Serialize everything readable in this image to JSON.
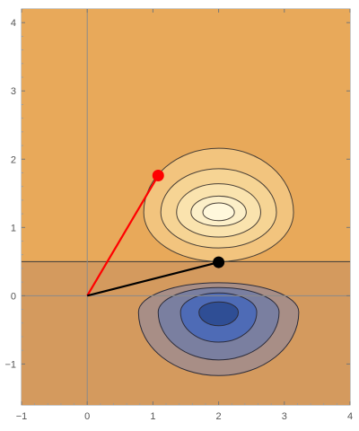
{
  "chart_data": {
    "type": "contour",
    "xlim": [
      -1,
      4
    ],
    "ylim": [
      -1.6,
      4.2
    ],
    "x_ticks": [
      "−1",
      "0",
      "1",
      "2",
      "3",
      "4"
    ],
    "y_ticks": [
      "−1",
      "0",
      "1",
      "2",
      "3",
      "4"
    ],
    "x_tick_values": [
      -1,
      0,
      1,
      2,
      3,
      4
    ],
    "y_tick_values": [
      -1,
      0,
      1,
      2,
      3,
      4
    ],
    "background": {
      "upper": "#E8A95A",
      "lower": "#D49A5E"
    },
    "boundary_y": 0.5,
    "axes_origin": [
      0,
      0
    ],
    "contours_upper": {
      "center": [
        2,
        1.22
      ],
      "levels": [
        {
          "rx": 1.14,
          "ry_top": 0.94,
          "ry_bottom": 0.72,
          "color": "#F2C47E"
        },
        {
          "rx": 0.88,
          "ry_top": 0.64,
          "ry_bottom": 0.52,
          "color": "#F6D494"
        },
        {
          "rx": 0.64,
          "ry_top": 0.42,
          "ry_bottom": 0.36,
          "color": "#FAE3AE"
        },
        {
          "rx": 0.42,
          "ry_top": 0.24,
          "ry_bottom": 0.2,
          "color": "#FCEFC8"
        },
        {
          "rx": 0.24,
          "ry_top": 0.14,
          "ry_bottom": 0.12,
          "color": "#FFF8DC"
        }
      ]
    },
    "contours_lower": {
      "center": [
        2,
        -0.24
      ],
      "levels": [
        {
          "rx": 1.22,
          "ry_top": 0.43,
          "ry_bottom": 0.93,
          "color": "#A88E86"
        },
        {
          "rx": 0.92,
          "ry_top": 0.36,
          "ry_bottom": 0.7,
          "color": "#7A7FA0"
        },
        {
          "rx": 0.58,
          "ry_top": 0.28,
          "ry_bottom": 0.44,
          "color": "#4E6BB6"
        },
        {
          "rx": 0.3,
          "ry_top": 0.15,
          "ry_bottom": 0.2,
          "color": "#2F4E95"
        }
      ]
    },
    "vectors": [
      {
        "from": [
          0,
          0
        ],
        "to": [
          1.08,
          1.76
        ],
        "color": "#FF0000",
        "label": "red vector"
      },
      {
        "from": [
          0,
          0
        ],
        "to": [
          2.0,
          0.49
        ],
        "color": "#000000",
        "label": "black vector"
      }
    ]
  }
}
